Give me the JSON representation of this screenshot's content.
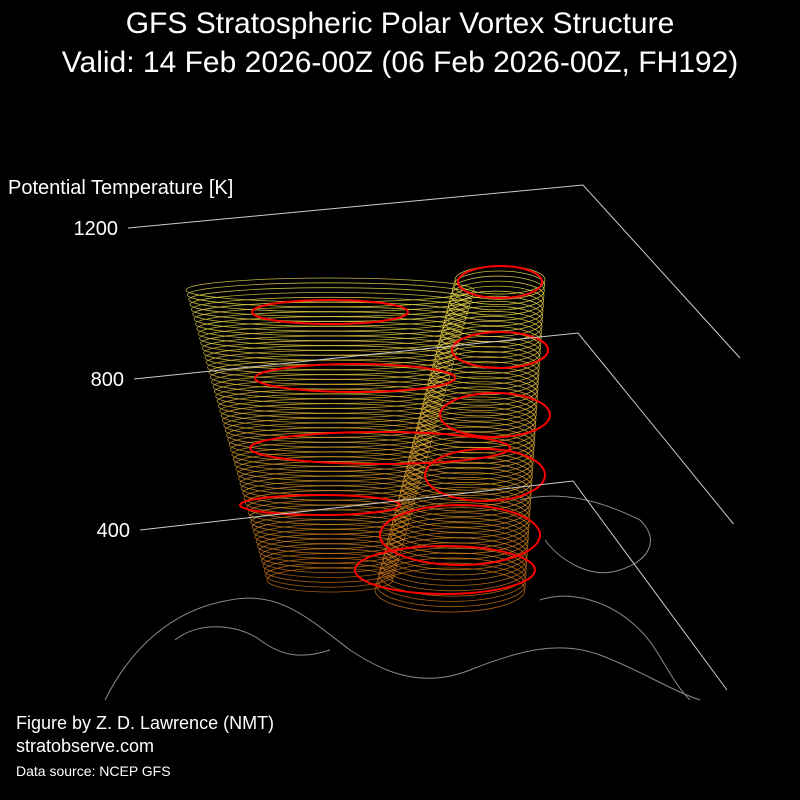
{
  "chart_data": {
    "type": "3d-vortex",
    "title": "GFS Stratospheric Polar Vortex Structure",
    "subtitle": "Valid: 14 Feb 2026-00Z  (06 Feb 2026-00Z, FH192)",
    "zlabel": "Potential Temperature [K]",
    "zlim": [
      400,
      1200
    ],
    "zticks": [
      400,
      800,
      1200
    ],
    "credits": [
      "Figure by Z. D. Lawrence (NMT)",
      "stratobserve.com"
    ],
    "source": "Data source: NCEP GFS"
  }
}
